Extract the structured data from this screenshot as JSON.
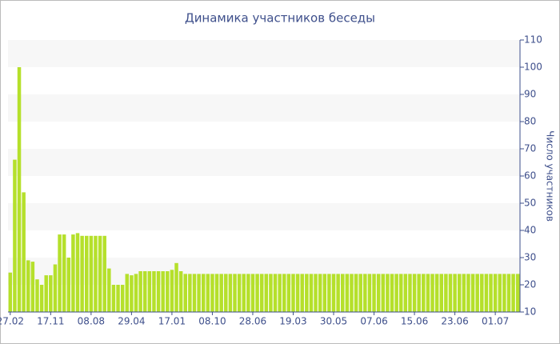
{
  "chart_data": {
    "type": "bar",
    "title": "Динамика участников беседы",
    "y_axis_label": "Число участников",
    "y_axis_side": "right",
    "color": "#b5e02b",
    "categories": [
      "27.02",
      null,
      null,
      null,
      null,
      null,
      null,
      null,
      null,
      "17.11",
      null,
      null,
      null,
      null,
      null,
      null,
      null,
      null,
      "08.08",
      null,
      null,
      null,
      null,
      null,
      null,
      null,
      null,
      "29.04",
      null,
      null,
      null,
      null,
      null,
      null,
      null,
      null,
      "17.01",
      null,
      null,
      null,
      null,
      null,
      null,
      null,
      null,
      "08.10",
      null,
      null,
      null,
      null,
      null,
      null,
      null,
      null,
      "28.06",
      null,
      null,
      null,
      null,
      null,
      null,
      null,
      null,
      "19.03",
      null,
      null,
      null,
      null,
      null,
      null,
      null,
      null,
      "30.05",
      null,
      null,
      null,
      null,
      null,
      null,
      null,
      null,
      "07.06",
      null,
      null,
      null,
      null,
      null,
      null,
      null,
      null,
      "15.06",
      null,
      null,
      null,
      null,
      null,
      null,
      null,
      null,
      "23.06",
      null,
      null,
      null,
      null,
      null,
      null,
      null,
      null,
      "01.07",
      null,
      null,
      null,
      null,
      null
    ],
    "values": [
      24.5,
      66,
      100,
      54,
      29,
      28.5,
      22,
      20,
      23.5,
      23.5,
      27.5,
      38.5,
      38.5,
      30,
      38.5,
      39,
      38,
      38,
      38,
      38,
      38,
      38,
      26,
      20,
      20,
      20,
      24,
      23.5,
      24,
      25,
      25,
      25,
      25,
      25,
      25,
      25,
      25.5,
      28,
      25,
      24,
      24,
      24,
      24,
      24,
      24,
      24,
      24,
      24,
      24,
      24,
      24,
      24,
      24,
      24,
      24,
      24,
      24,
      24,
      24,
      24,
      24,
      24,
      24,
      24,
      24,
      24,
      24,
      24,
      24,
      24,
      24,
      24,
      24,
      24,
      24,
      24,
      24,
      24,
      24,
      24,
      24,
      24,
      24,
      24,
      24,
      24,
      24,
      24,
      24,
      24,
      24,
      24,
      24,
      24,
      24,
      24,
      24,
      24,
      24,
      24,
      24,
      24,
      24,
      24,
      24,
      24,
      24,
      24,
      24,
      24,
      24,
      24,
      24,
      24
    ],
    "ylim": [
      10,
      110
    ],
    "yticks": [
      10,
      20,
      30,
      40,
      50,
      60,
      70,
      80,
      90,
      100,
      110
    ],
    "banded_grid": true
  }
}
